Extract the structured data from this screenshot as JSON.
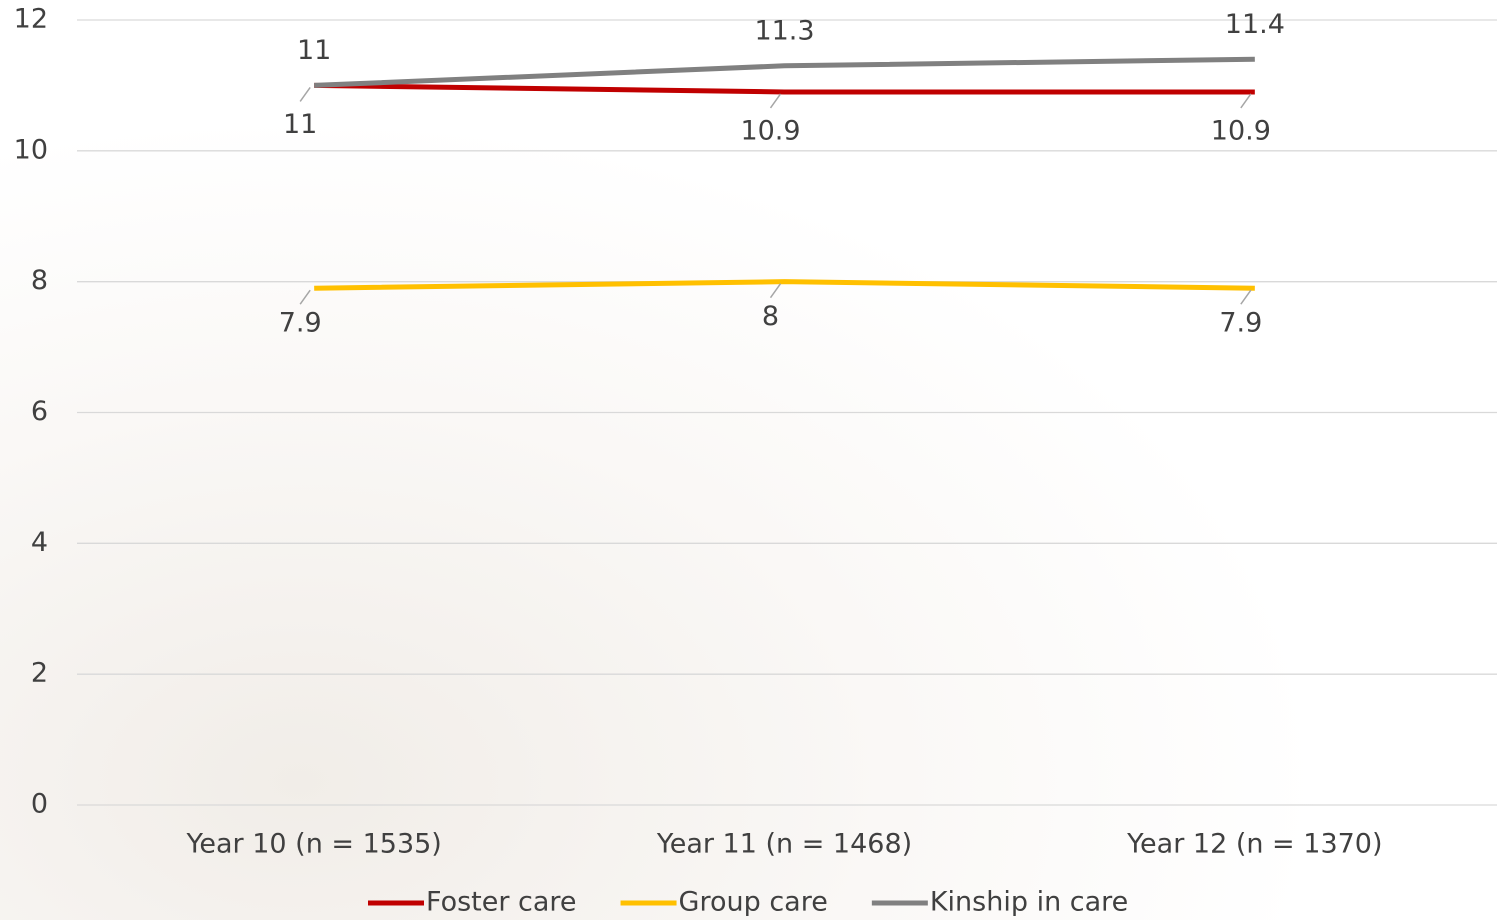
{
  "chart_data": {
    "type": "line",
    "categories": [
      "Year 10 (n = 1535)",
      "Year 11 (n = 1468)",
      "Year 12 (n = 1370)"
    ],
    "series": [
      {
        "name": "Foster care",
        "color": "#c00000",
        "values": [
          11,
          10.9,
          10.9
        ]
      },
      {
        "name": "Group care",
        "color": "#ffc000",
        "values": [
          7.9,
          8,
          7.9
        ]
      },
      {
        "name": "Kinship in care",
        "color": "#808080",
        "values": [
          11,
          11.3,
          11.4
        ]
      }
    ],
    "ylim": [
      0,
      12
    ],
    "yticks": [
      0,
      2,
      4,
      6,
      8,
      10,
      12
    ],
    "grid": true,
    "legend": "bottom"
  }
}
